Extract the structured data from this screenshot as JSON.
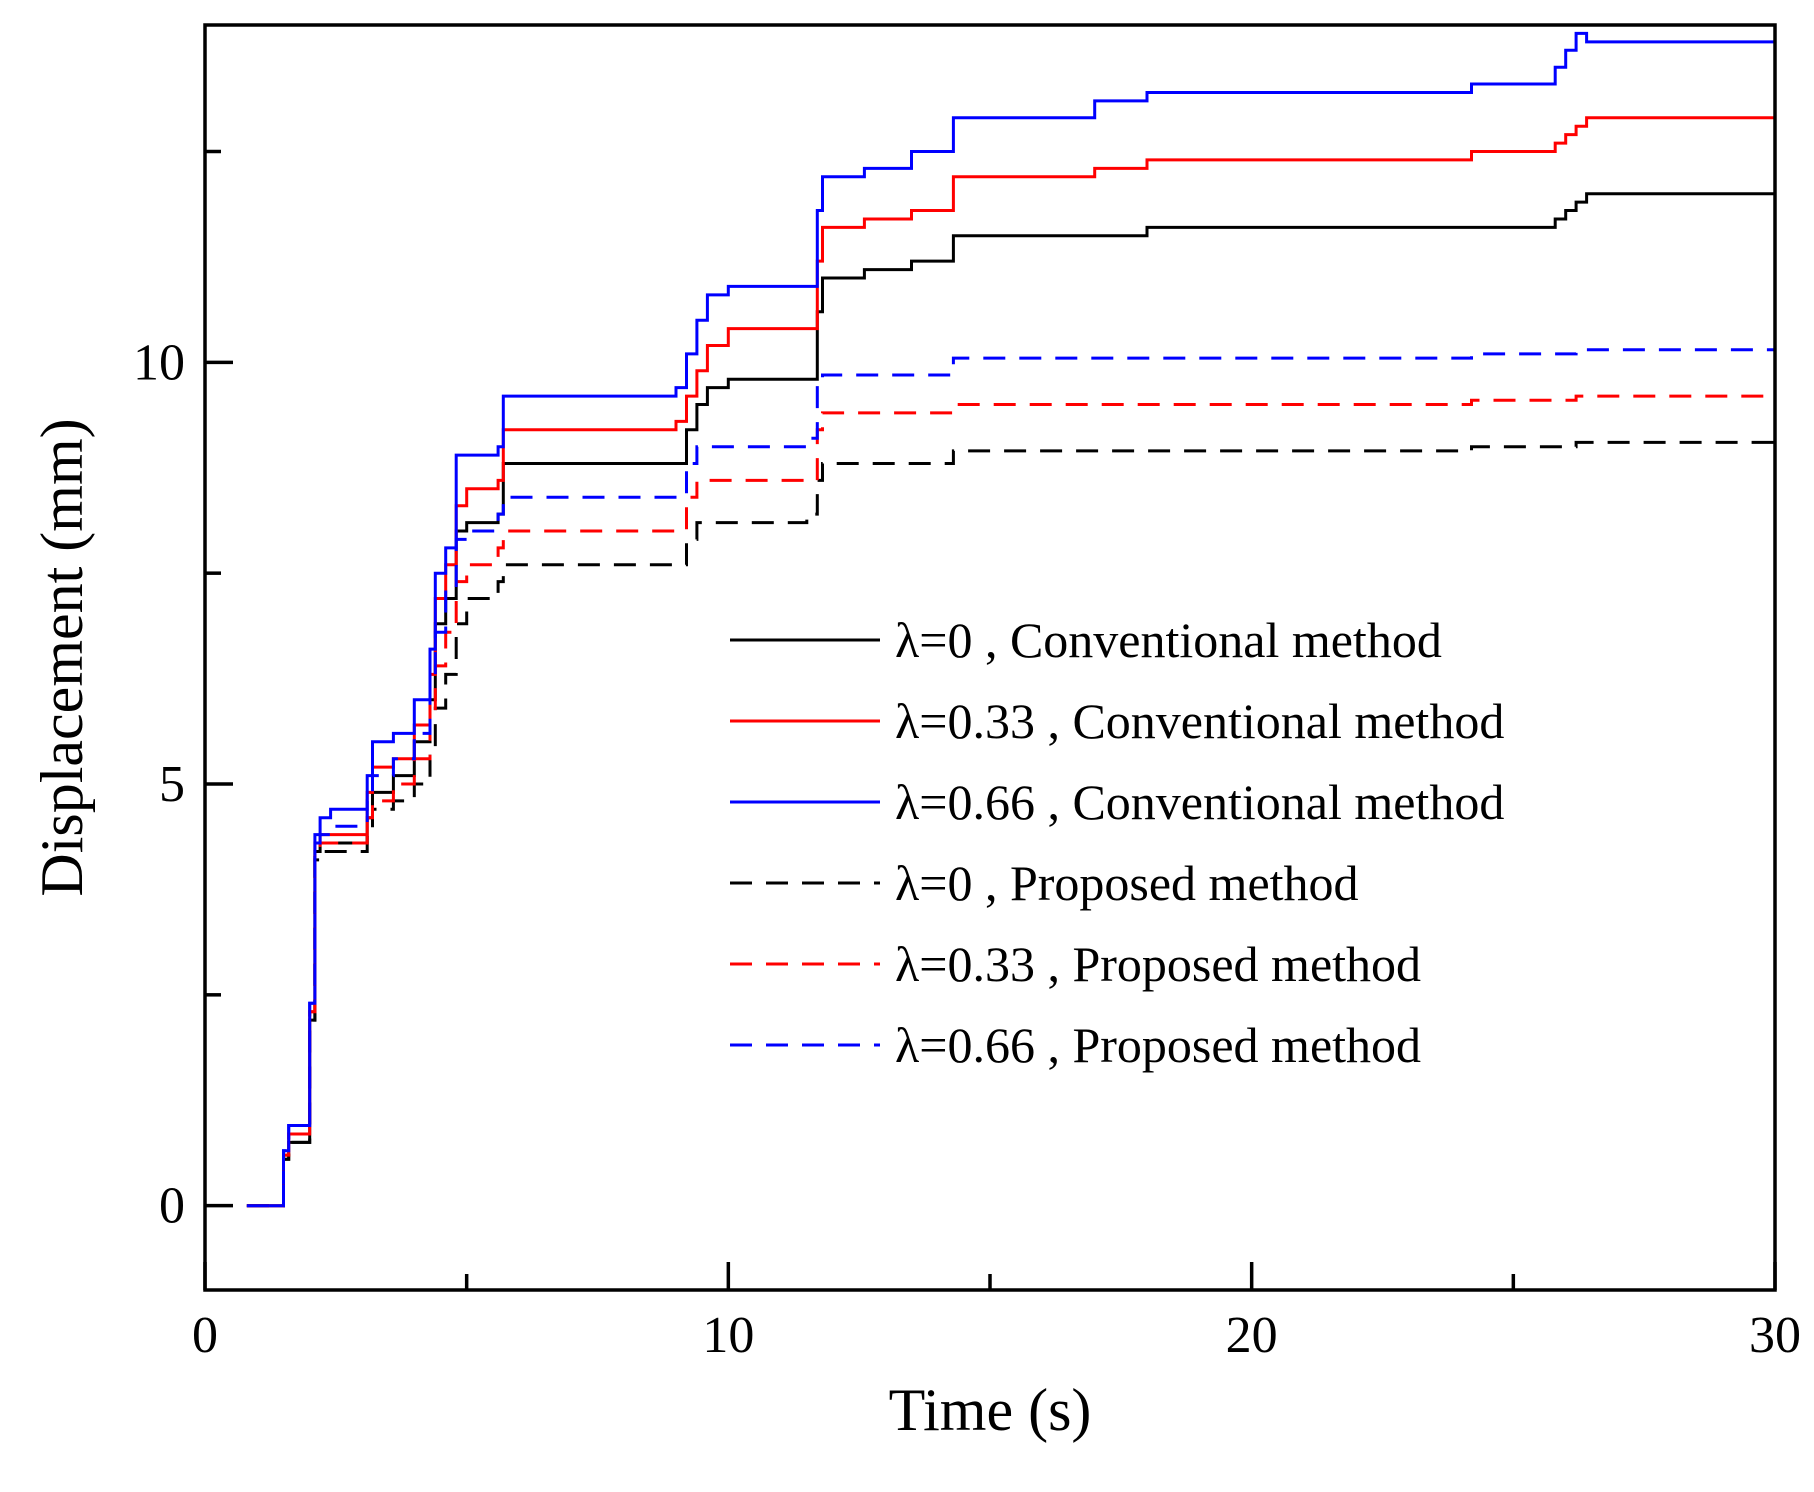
{
  "chart_data": {
    "type": "line",
    "xlabel": "Time (s)",
    "ylabel": "Displacement (mm)",
    "xlim": [
      0,
      30
    ],
    "ylim": [
      -1,
      14
    ],
    "xticks": [
      0,
      10,
      20,
      30
    ],
    "xtick_labels": [
      "0",
      "10",
      "20",
      "30"
    ],
    "xminor": [
      5,
      15,
      25
    ],
    "yticks": [
      0,
      5,
      10
    ],
    "ytick_labels": [
      "0",
      "5",
      "10"
    ],
    "yminor": [
      2.5,
      7.5,
      12.5
    ],
    "grid": false,
    "legend_position": "center-right",
    "series": [
      {
        "name": "λ=0 , Conventional method",
        "color": "#000000",
        "dash": "solid",
        "x": [
          0.8,
          1.4,
          1.5,
          1.6,
          1.9,
          2.0,
          2.1,
          2.2,
          2.4,
          3.1,
          3.2,
          3.6,
          4.0,
          4.3,
          4.4,
          4.6,
          4.8,
          5.0,
          5.6,
          5.7,
          9.0,
          9.2,
          9.4,
          9.6,
          10.0,
          11.5,
          11.7,
          11.8,
          12.6,
          13.5,
          14.3,
          17.0,
          18.0,
          24.2,
          25.8,
          26.0,
          26.2,
          26.4,
          30.0
        ],
        "y": [
          0,
          0,
          0.55,
          0.75,
          0.75,
          2.2,
          4.2,
          4.3,
          4.3,
          4.6,
          4.9,
          5.1,
          5.5,
          6.0,
          6.9,
          7.2,
          8.0,
          8.1,
          8.2,
          8.8,
          8.8,
          9.2,
          9.5,
          9.7,
          9.8,
          9.8,
          10.6,
          11.0,
          11.1,
          11.2,
          11.5,
          11.5,
          11.6,
          11.6,
          11.7,
          11.8,
          11.9,
          12.0,
          12.0
        ]
      },
      {
        "name": "λ=0.33 , Conventional method",
        "color": "#ff0000",
        "dash": "solid",
        "x": [
          0.8,
          1.4,
          1.5,
          1.6,
          1.9,
          2.0,
          2.1,
          2.2,
          2.4,
          3.1,
          3.2,
          3.6,
          4.0,
          4.3,
          4.4,
          4.6,
          4.8,
          5.0,
          5.6,
          5.7,
          9.0,
          9.2,
          9.4,
          9.6,
          10.0,
          11.5,
          11.7,
          11.8,
          12.6,
          13.5,
          14.3,
          17.0,
          18.0,
          24.2,
          25.8,
          26.0,
          26.2,
          26.4,
          30.0
        ],
        "y": [
          0,
          0,
          0.6,
          0.85,
          0.85,
          2.3,
          4.3,
          4.4,
          4.4,
          4.9,
          5.2,
          5.3,
          5.7,
          6.3,
          7.2,
          7.6,
          8.3,
          8.5,
          8.6,
          9.2,
          9.3,
          9.6,
          9.9,
          10.2,
          10.4,
          10.4,
          11.2,
          11.6,
          11.7,
          11.8,
          12.2,
          12.3,
          12.4,
          12.5,
          12.6,
          12.7,
          12.8,
          12.9,
          12.9
        ]
      },
      {
        "name": "λ=0.66 , Conventional method",
        "color": "#0000ff",
        "dash": "solid",
        "x": [
          0.8,
          1.4,
          1.5,
          1.6,
          1.9,
          2.0,
          2.1,
          2.2,
          2.4,
          3.1,
          3.2,
          3.6,
          4.0,
          4.3,
          4.4,
          4.6,
          4.8,
          5.0,
          5.6,
          5.7,
          9.0,
          9.2,
          9.4,
          9.6,
          10.0,
          11.5,
          11.7,
          11.8,
          12.6,
          13.5,
          14.3,
          17.0,
          18.0,
          24.2,
          25.8,
          26.0,
          26.2,
          26.4,
          30.0
        ],
        "y": [
          0,
          0,
          0.65,
          0.95,
          0.95,
          2.4,
          4.4,
          4.6,
          4.7,
          5.1,
          5.5,
          5.6,
          6.0,
          6.6,
          7.5,
          7.8,
          8.9,
          8.9,
          9.0,
          9.6,
          9.7,
          10.1,
          10.5,
          10.8,
          10.9,
          10.9,
          11.8,
          12.2,
          12.3,
          12.5,
          12.9,
          13.1,
          13.2,
          13.3,
          13.5,
          13.7,
          13.9,
          13.8,
          13.8
        ]
      },
      {
        "name": "λ=0 , Proposed method",
        "color": "#000000",
        "dash": "dashed",
        "x": [
          0.8,
          1.4,
          1.5,
          1.6,
          1.9,
          2.0,
          2.1,
          2.2,
          2.4,
          3.1,
          3.2,
          3.6,
          4.0,
          4.3,
          4.4,
          4.6,
          4.8,
          5.0,
          5.6,
          5.7,
          9.0,
          9.2,
          9.4,
          11.5,
          11.7,
          11.8,
          14.3,
          24.2,
          26.2,
          30.0
        ],
        "y": [
          0,
          0,
          0.55,
          0.75,
          0.75,
          2.2,
          4.1,
          4.2,
          4.2,
          4.4,
          4.7,
          4.8,
          5.0,
          5.4,
          5.9,
          6.3,
          6.9,
          7.2,
          7.4,
          7.6,
          7.6,
          7.9,
          8.1,
          8.2,
          8.6,
          8.8,
          8.95,
          9.0,
          9.05,
          9.1
        ]
      },
      {
        "name": "λ=0.33 , Proposed method",
        "color": "#ff0000",
        "dash": "dashed",
        "x": [
          0.8,
          1.4,
          1.5,
          1.6,
          1.9,
          2.0,
          2.1,
          2.2,
          2.4,
          3.1,
          3.2,
          3.6,
          4.0,
          4.3,
          4.4,
          4.6,
          4.8,
          5.0,
          5.6,
          5.7,
          9.0,
          9.2,
          9.4,
          11.5,
          11.7,
          11.8,
          14.3,
          24.2,
          26.2,
          30.0
        ],
        "y": [
          0,
          0,
          0.6,
          0.85,
          0.85,
          2.3,
          4.2,
          4.3,
          4.3,
          4.6,
          4.8,
          5.0,
          5.3,
          5.8,
          6.4,
          6.8,
          7.4,
          7.6,
          7.8,
          8.0,
          8.0,
          8.4,
          8.6,
          8.6,
          9.2,
          9.4,
          9.5,
          9.55,
          9.6,
          9.65
        ]
      },
      {
        "name": "λ=0.66 , Proposed method",
        "color": "#0000ff",
        "dash": "dashed",
        "x": [
          0.8,
          1.4,
          1.5,
          1.6,
          1.9,
          2.0,
          2.1,
          2.2,
          2.4,
          3.1,
          3.2,
          3.6,
          4.0,
          4.3,
          4.4,
          4.6,
          4.8,
          5.0,
          5.6,
          5.7,
          9.0,
          9.2,
          9.4,
          11.5,
          11.7,
          11.8,
          14.3,
          24.2,
          26.2,
          30.0
        ],
        "y": [
          0,
          0,
          0.65,
          0.95,
          0.95,
          2.4,
          4.3,
          4.4,
          4.5,
          4.8,
          5.1,
          5.3,
          5.6,
          6.2,
          6.8,
          7.3,
          7.9,
          8.0,
          8.2,
          8.4,
          8.4,
          8.8,
          9.0,
          9.1,
          9.7,
          9.85,
          10.05,
          10.1,
          10.15,
          10.2
        ]
      }
    ]
  }
}
